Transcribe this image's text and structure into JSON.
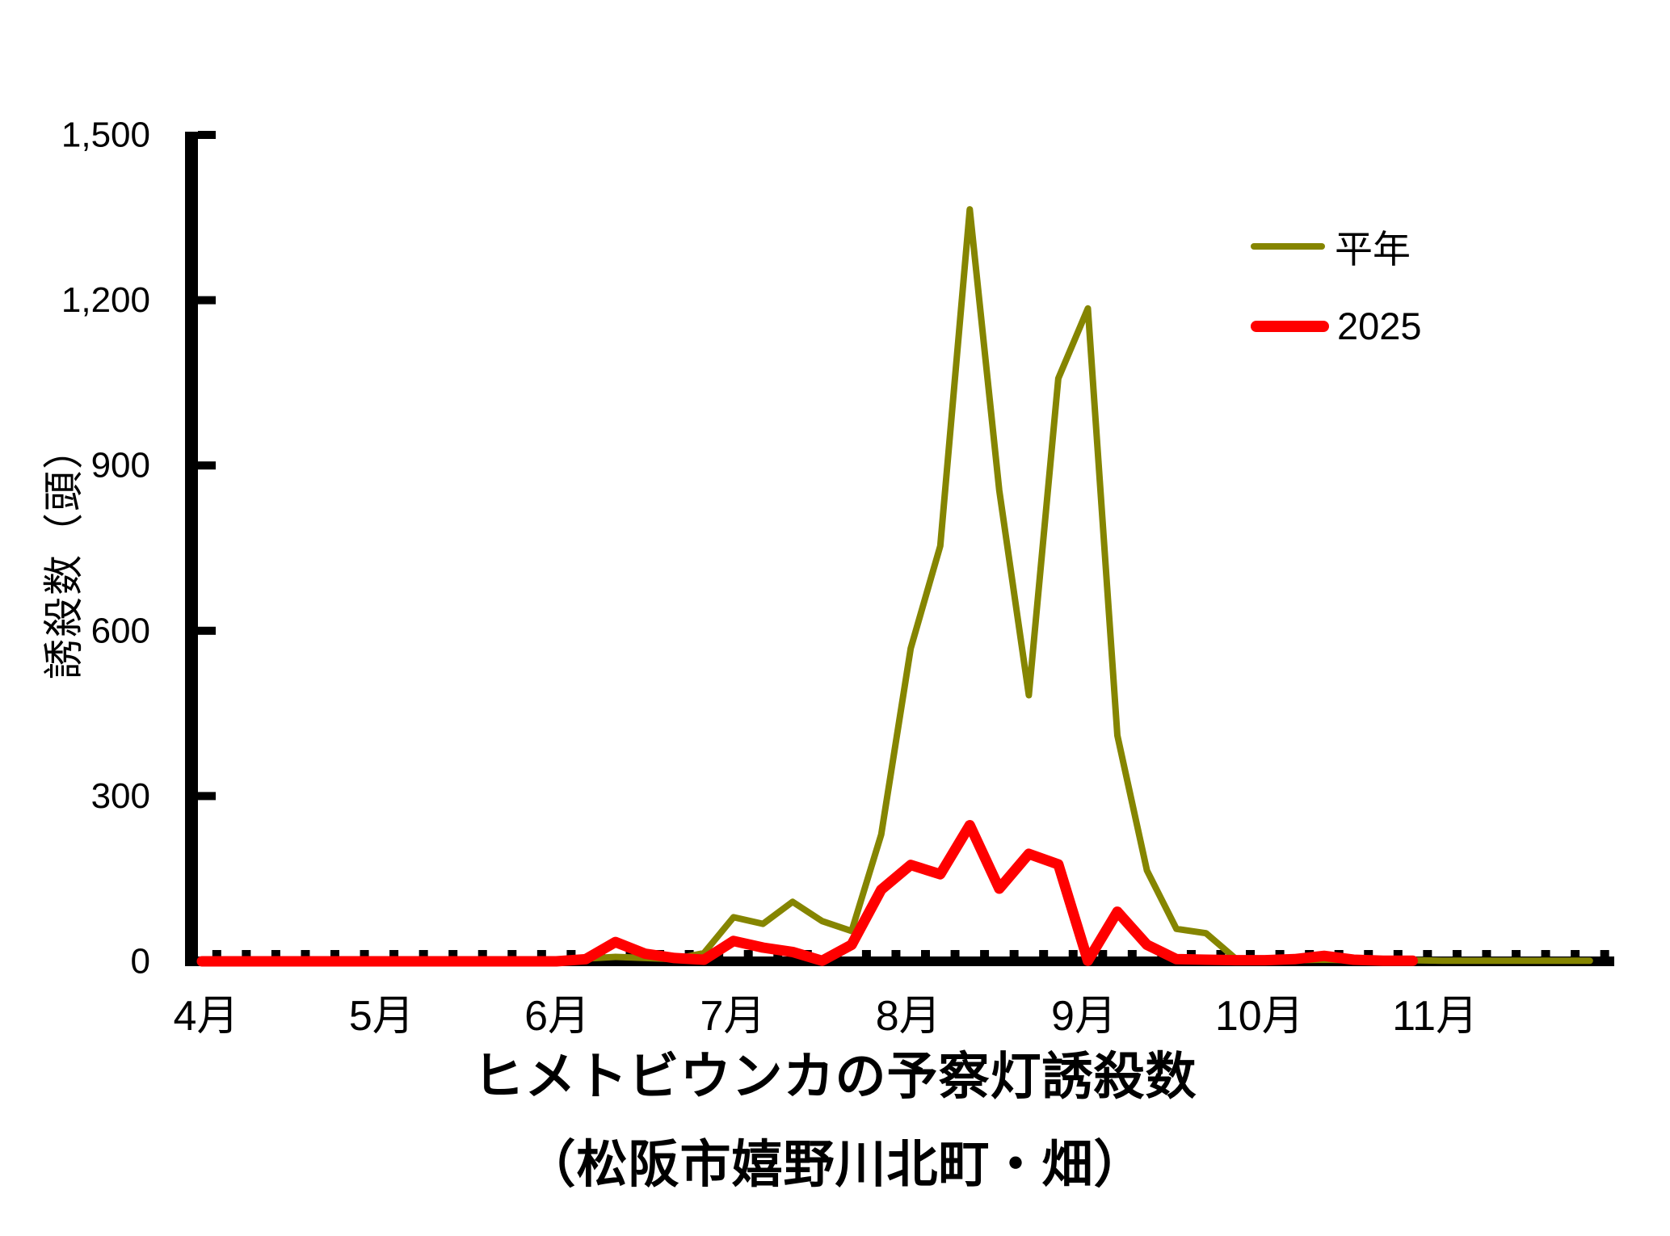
{
  "chart_data": {
    "type": "line",
    "title_line1": "ヒメトビウンカの予察灯誘殺数",
    "title_line2": "（松阪市嬉野川北町・畑）",
    "y_axis_label": "誘殺数（頭）",
    "ylim": [
      0,
      1500
    ],
    "y_tick_values": [
      0,
      300,
      600,
      900,
      1200,
      1500
    ],
    "y_tick_labels": [
      "0",
      "300",
      "600",
      "900",
      "1,200",
      "1,500"
    ],
    "x_month_labels": [
      "4月",
      "5月",
      "6月",
      "7月",
      "8月",
      "9月",
      "10月",
      "11月"
    ],
    "points_per_month": 6,
    "x_unit": "半旬 (pentad), 6 per month, April–November",
    "grid": false,
    "legend_position": "upper right inside plot",
    "legend": [
      {
        "label": "平年",
        "color": "#858500",
        "thickness": "thin"
      },
      {
        "label": "2025",
        "color": "#FF0000",
        "thickness": "thick"
      }
    ],
    "series": [
      {
        "name": "平年",
        "color": "#858500",
        "stroke_width": 8,
        "values": [
          0,
          0,
          0,
          0,
          0,
          0,
          0,
          0,
          0,
          0,
          0,
          1,
          2,
          5,
          8,
          6,
          4,
          15,
          80,
          68,
          108,
          73,
          55,
          230,
          568,
          754,
          1365,
          855,
          483,
          1058,
          1185,
          410,
          165,
          59,
          51,
          5,
          2,
          2,
          3,
          2,
          2,
          2,
          1,
          1,
          1,
          1,
          1,
          1
        ]
      },
      {
        "name": "2025",
        "color": "#FF0000",
        "stroke_width": 13,
        "values": [
          0,
          0,
          0,
          0,
          0,
          0,
          0,
          0,
          0,
          0,
          0,
          0,
          0,
          4,
          35,
          14,
          6,
          3,
          37,
          25,
          17,
          1,
          30,
          130,
          175,
          158,
          247,
          132,
          195,
          176,
          1,
          90,
          30,
          4,
          3,
          2,
          2,
          4,
          10,
          3,
          1,
          1
        ]
      }
    ]
  }
}
